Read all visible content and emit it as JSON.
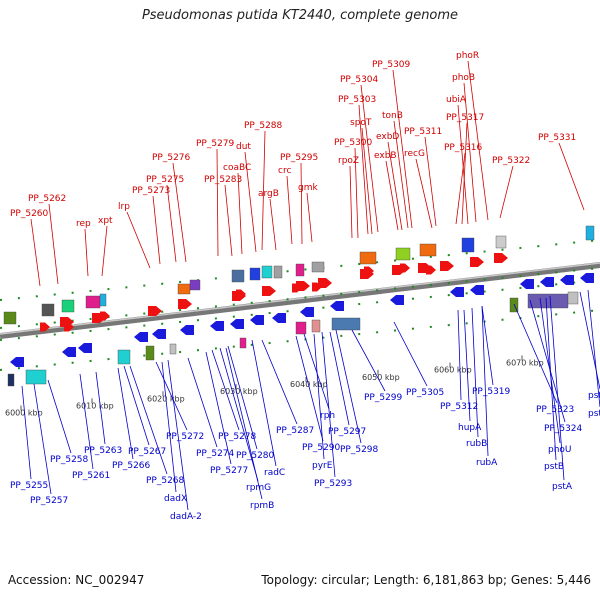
{
  "title": "Pseudomonas putida KT2440, complete genome",
  "footer": {
    "accession": "Accession: NC_002947",
    "summary": "Topology: circular; Length: 6,181,863 bp; Genes: 5,446"
  },
  "colors": {
    "forward_label": "#d00000",
    "reverse_label": "#0000cc",
    "forward_arrow": "#ee1111",
    "reverse_arrow": "#1a1adc",
    "backbone": "#888888",
    "dashed_track": "#1f8a1f",
    "ruler_text": "#333333"
  },
  "ruler": [
    "6000 kbp",
    "6010 kbp",
    "6020 kbp",
    "6030 kbp",
    "6040 kbp",
    "6050 kbp",
    "6060 kbp",
    "6070 kbp"
  ],
  "forward_genes": [
    "PP_5260",
    "PP_5262",
    "rep",
    "xpt",
    "lrp",
    "PP_5273",
    "PP_5275",
    "PP_5276",
    "PP_5279",
    "PP_5283",
    "coaBC",
    "PP_5288",
    "dut",
    "argB",
    "crc",
    "PP_5295",
    "gmk",
    "rpoZ",
    "PP_5300",
    "PP_5303",
    "spoT",
    "PP_5304",
    "exbB",
    "exbD",
    "tonB",
    "PP_5309",
    "recG",
    "PP_5311",
    "PP_5316",
    "PP_5317",
    "ubiA",
    "phoB",
    "phoR",
    "PP_5322",
    "PP_5331"
  ],
  "reverse_genes": [
    "PP_5255",
    "PP_5257",
    "PP_5258",
    "PP_5261",
    "PP_5263",
    "PP_5266",
    "PP_5267",
    "PP_5268",
    "dadX",
    "dadA-2",
    "PP_5272",
    "PP_5274",
    "PP_5277",
    "PP_5278",
    "rpmG",
    "rpmB",
    "PP_5280",
    "radC",
    "PP_5287",
    "PP_5290",
    "pyrE",
    "PP_5293",
    "rph",
    "PP_5297",
    "PP_5298",
    "PP_5299",
    "PP_5305",
    "PP_5312",
    "hupA",
    "rubB",
    "rubA",
    "PP_5319",
    "PP_5323",
    "PP_5324",
    "phoU",
    "pstB",
    "pstA",
    "pstC",
    "pstS"
  ]
}
